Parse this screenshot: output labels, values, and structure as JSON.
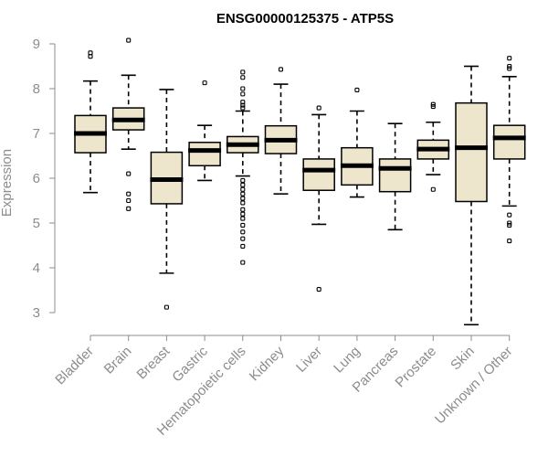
{
  "chart_data": {
    "type": "boxplot",
    "title": "ENSG00000125375 - ATP5S",
    "ylabel": "Expression",
    "ylim": [
      2.7,
      9.2
    ],
    "yticks": [
      3,
      4,
      5,
      6,
      7,
      8,
      9
    ],
    "box_color": "#ede6cc",
    "axis_color": "#8c8c8c",
    "categories": [
      "Bladder",
      "Brain",
      "Breast",
      "Gastric",
      "Hematopoietic cells",
      "Kidney",
      "Liver",
      "Lung",
      "Pancreas",
      "Prostate",
      "Skin",
      "Unknown / Other"
    ],
    "boxes": [
      {
        "min": 5.68,
        "q1": 6.57,
        "median": 7.0,
        "q3": 7.4,
        "max": 8.17,
        "outliers": [
          8.72,
          8.8
        ]
      },
      {
        "min": 6.65,
        "q1": 7.08,
        "median": 7.3,
        "q3": 7.57,
        "max": 8.3,
        "outliers": [
          9.08,
          6.1,
          5.65,
          5.5,
          5.32
        ]
      },
      {
        "min": 3.88,
        "q1": 5.43,
        "median": 5.97,
        "q3": 6.58,
        "max": 7.98,
        "outliers": [
          3.12
        ]
      },
      {
        "min": 5.95,
        "q1": 6.28,
        "median": 6.62,
        "q3": 6.8,
        "max": 7.18,
        "outliers": [
          8.13
        ]
      },
      {
        "min": 6.05,
        "q1": 6.57,
        "median": 6.75,
        "q3": 6.93,
        "max": 7.5,
        "outliers": [
          8.37,
          8.25,
          8.0,
          7.88,
          7.7,
          7.63,
          7.57,
          5.95,
          5.85,
          5.75,
          5.65,
          5.55,
          5.45,
          5.3,
          5.2,
          5.1,
          4.95,
          4.8,
          4.65,
          4.48,
          4.12
        ]
      },
      {
        "min": 5.65,
        "q1": 6.55,
        "median": 6.85,
        "q3": 7.17,
        "max": 8.1,
        "outliers": [
          8.43
        ]
      },
      {
        "min": 4.97,
        "q1": 5.73,
        "median": 6.18,
        "q3": 6.43,
        "max": 7.42,
        "outliers": [
          7.57,
          3.52
        ]
      },
      {
        "min": 5.58,
        "q1": 5.85,
        "median": 6.28,
        "q3": 6.68,
        "max": 7.5,
        "outliers": [
          7.97
        ]
      },
      {
        "min": 4.85,
        "q1": 5.7,
        "median": 6.22,
        "q3": 6.43,
        "max": 7.22,
        "outliers": []
      },
      {
        "min": 6.08,
        "q1": 6.43,
        "median": 6.65,
        "q3": 6.85,
        "max": 7.25,
        "outliers": [
          7.65,
          7.6,
          5.75
        ]
      },
      {
        "min": 2.73,
        "q1": 5.48,
        "median": 6.68,
        "q3": 7.68,
        "max": 8.5,
        "outliers": []
      },
      {
        "min": 5.38,
        "q1": 6.43,
        "median": 6.9,
        "q3": 7.18,
        "max": 8.27,
        "outliers": [
          8.68,
          8.5,
          8.45,
          5.18,
          5.0,
          4.95,
          4.6
        ]
      }
    ]
  }
}
